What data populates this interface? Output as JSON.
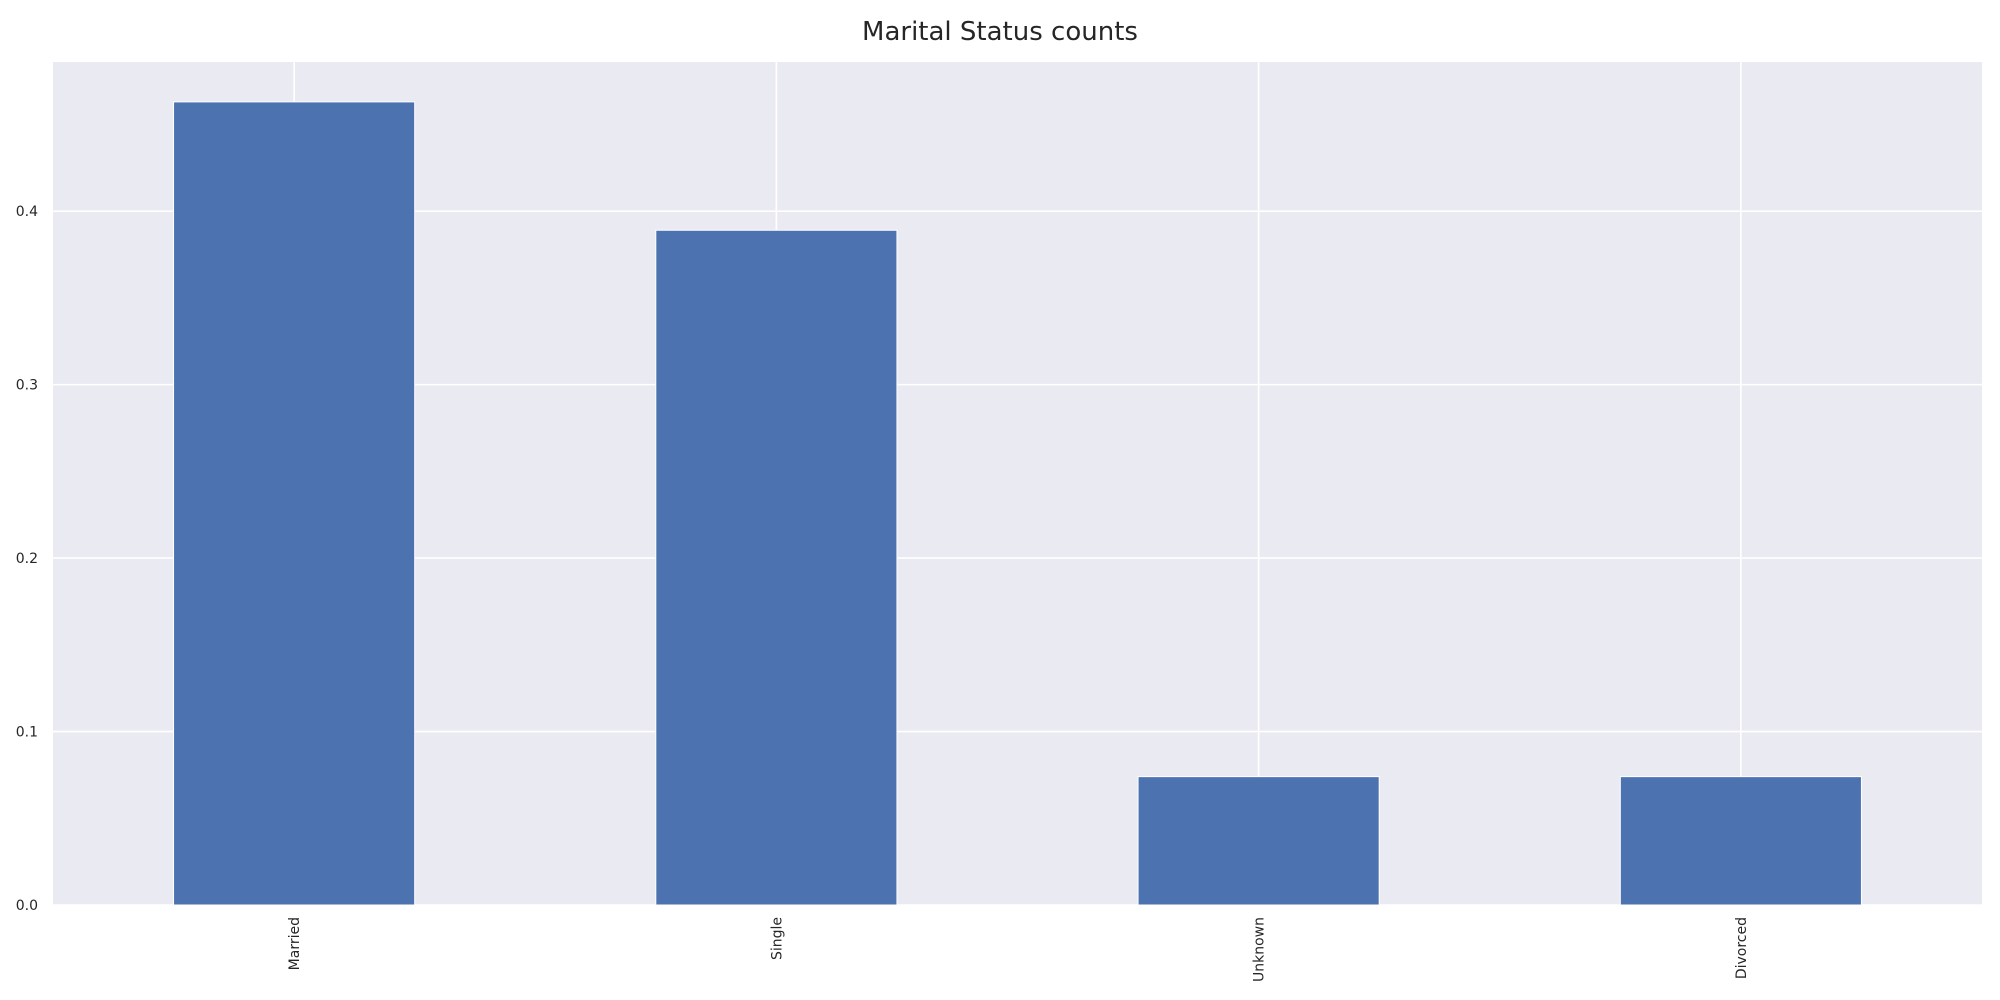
{
  "chart_data": {
    "type": "bar",
    "title": "Marital Status counts",
    "xlabel": "",
    "ylabel": "",
    "categories": [
      "Married",
      "Single",
      "Unknown",
      "Divorced"
    ],
    "values": [
      0.463,
      0.389,
      0.074,
      0.074
    ],
    "ylim": [
      0,
      0.486
    ],
    "yticks": [
      "0.0",
      "0.1",
      "0.2",
      "0.3",
      "0.4"
    ],
    "ytick_values": [
      0.0,
      0.1,
      0.2,
      0.3,
      0.4
    ],
    "grid": true,
    "legend": "none",
    "colors": {
      "bar": "#4c72b0",
      "plot_background": "#eaeaf2",
      "grid": "#ffffff",
      "text": "#262626"
    }
  }
}
